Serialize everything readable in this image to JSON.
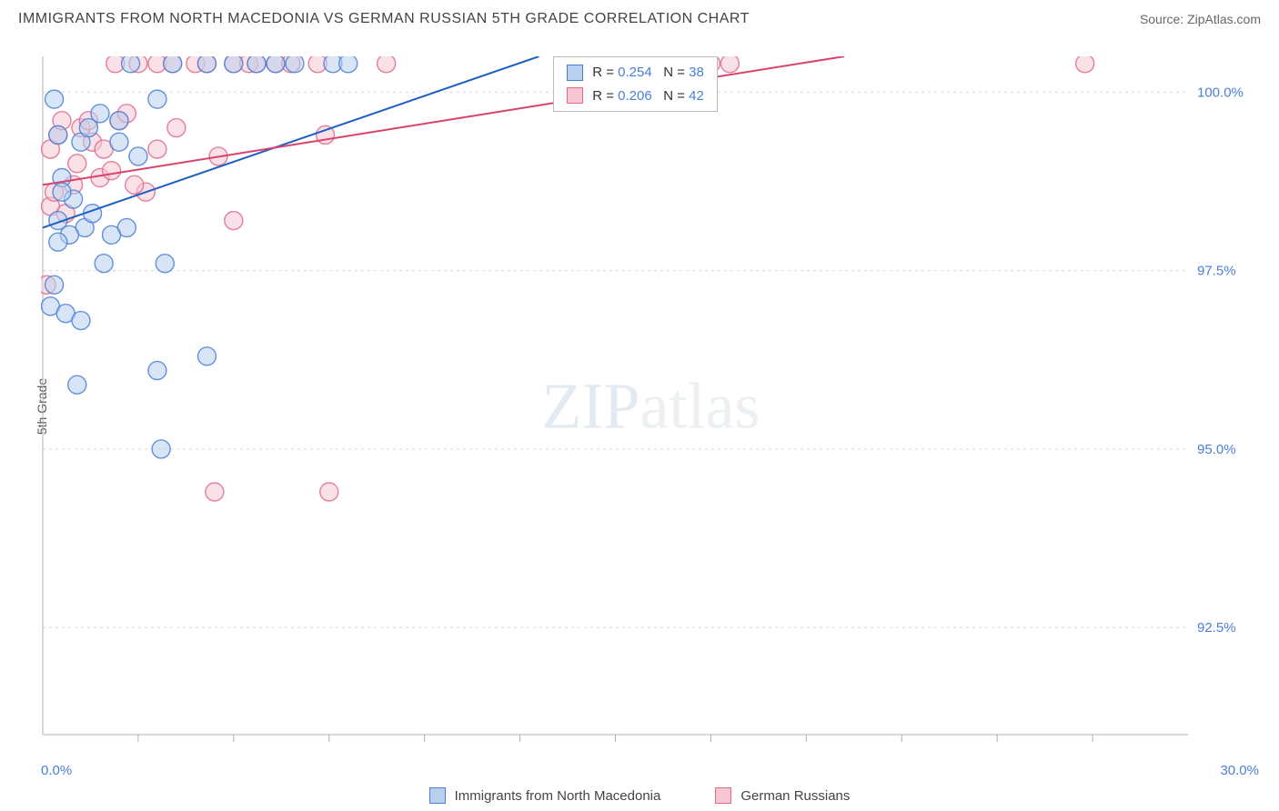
{
  "header": {
    "title": "IMMIGRANTS FROM NORTH MACEDONIA VS GERMAN RUSSIAN 5TH GRADE CORRELATION CHART",
    "source_prefix": "Source: ",
    "source_name": "ZipAtlas.com"
  },
  "watermark": {
    "bold": "ZIP",
    "light": "atlas"
  },
  "chart": {
    "type": "scatter",
    "ylabel": "5th Grade",
    "background_color": "#ffffff",
    "grid_color": "#d8d8d8",
    "axis_color": "#b0b0b0",
    "label_color": "#4a7fd6",
    "xlim": [
      0.0,
      30.0
    ],
    "ylim": [
      91.0,
      100.5
    ],
    "x_corner_labels": [
      "0.0%",
      "30.0%"
    ],
    "x_minor_ticks": [
      2.5,
      5.0,
      7.5,
      10.0,
      12.5,
      15.0,
      17.5,
      20.0,
      22.5,
      25.0,
      27.5
    ],
    "y_gridlines": [
      92.5,
      95.0,
      97.5,
      100.0
    ],
    "y_tick_labels": [
      "92.5%",
      "95.0%",
      "97.5%",
      "100.0%"
    ],
    "series": [
      {
        "id": "nm",
        "name": "Immigrants from North Macedonia",
        "fill": "#b8d0ee",
        "stroke": "#4a7fd6",
        "fill_opacity": 0.55,
        "stroke_opacity": 0.85,
        "marker_r": 10,
        "trend": {
          "x1": 0.0,
          "y1": 98.1,
          "x2": 13.0,
          "y2": 100.5,
          "color": "#1d5fc2",
          "width": 2
        },
        "stats": {
          "R": "0.254",
          "N": "38"
        },
        "points": [
          [
            0.2,
            97.0
          ],
          [
            0.3,
            97.3
          ],
          [
            0.4,
            98.2
          ],
          [
            0.5,
            98.8
          ],
          [
            0.6,
            96.9
          ],
          [
            0.4,
            99.4
          ],
          [
            0.8,
            98.5
          ],
          [
            0.3,
            99.9
          ],
          [
            1.0,
            99.3
          ],
          [
            1.2,
            99.5
          ],
          [
            1.1,
            98.1
          ],
          [
            1.5,
            99.7
          ],
          [
            1.3,
            98.3
          ],
          [
            1.6,
            97.6
          ],
          [
            1.0,
            96.8
          ],
          [
            0.9,
            95.9
          ],
          [
            2.0,
            99.3
          ],
          [
            2.0,
            99.6
          ],
          [
            2.3,
            100.4
          ],
          [
            2.5,
            99.1
          ],
          [
            2.2,
            98.1
          ],
          [
            3.0,
            96.1
          ],
          [
            3.1,
            95.0
          ],
          [
            3.2,
            97.6
          ],
          [
            3.0,
            99.9
          ],
          [
            3.4,
            100.4
          ],
          [
            4.3,
            96.3
          ],
          [
            4.3,
            100.4
          ],
          [
            5.0,
            100.4
          ],
          [
            5.6,
            100.4
          ],
          [
            6.1,
            100.4
          ],
          [
            6.6,
            100.4
          ],
          [
            7.6,
            100.4
          ],
          [
            8.0,
            100.4
          ],
          [
            0.7,
            98.0
          ],
          [
            1.8,
            98.0
          ],
          [
            0.5,
            98.6
          ],
          [
            0.4,
            97.9
          ]
        ]
      },
      {
        "id": "gr",
        "name": "German Russians",
        "fill": "#f6c7d3",
        "stroke": "#e26a8b",
        "fill_opacity": 0.55,
        "stroke_opacity": 0.85,
        "marker_r": 10,
        "trend": {
          "x1": 0.0,
          "y1": 98.7,
          "x2": 21.0,
          "y2": 100.5,
          "color": "#d9436b",
          "width": 2
        },
        "stats": {
          "R": "0.206",
          "N": "42"
        },
        "points": [
          [
            0.1,
            97.3
          ],
          [
            0.2,
            98.4
          ],
          [
            0.3,
            98.6
          ],
          [
            0.2,
            99.2
          ],
          [
            0.4,
            99.4
          ],
          [
            0.5,
            99.6
          ],
          [
            0.6,
            98.3
          ],
          [
            0.8,
            98.7
          ],
          [
            0.9,
            99.0
          ],
          [
            1.0,
            99.5
          ],
          [
            1.2,
            99.6
          ],
          [
            1.3,
            99.3
          ],
          [
            1.5,
            98.8
          ],
          [
            1.6,
            99.2
          ],
          [
            1.8,
            98.9
          ],
          [
            1.9,
            100.4
          ],
          [
            2.0,
            99.6
          ],
          [
            2.2,
            99.7
          ],
          [
            2.5,
            100.4
          ],
          [
            2.7,
            98.6
          ],
          [
            3.0,
            99.2
          ],
          [
            3.0,
            100.4
          ],
          [
            3.4,
            100.4
          ],
          [
            3.5,
            99.5
          ],
          [
            4.0,
            100.4
          ],
          [
            4.3,
            100.4
          ],
          [
            4.6,
            99.1
          ],
          [
            5.0,
            98.2
          ],
          [
            5.0,
            100.4
          ],
          [
            5.4,
            100.4
          ],
          [
            5.6,
            100.4
          ],
          [
            6.1,
            100.4
          ],
          [
            6.5,
            100.4
          ],
          [
            7.2,
            100.4
          ],
          [
            7.4,
            99.4
          ],
          [
            4.5,
            94.4
          ],
          [
            7.5,
            94.4
          ],
          [
            9.0,
            100.4
          ],
          [
            17.5,
            100.4
          ],
          [
            18.0,
            100.4
          ],
          [
            27.3,
            100.4
          ],
          [
            2.4,
            98.7
          ]
        ]
      }
    ],
    "legend_box": {
      "left_pct": 42,
      "top_pct": 0
    },
    "bottom_legend": true
  }
}
